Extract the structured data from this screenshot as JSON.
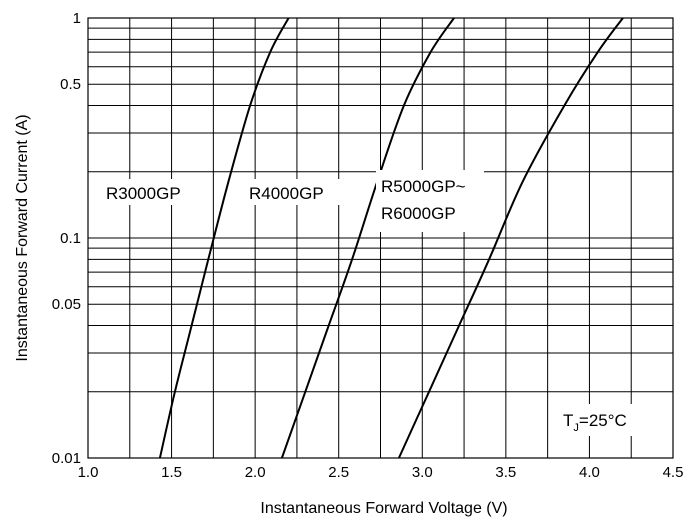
{
  "chart_data": {
    "type": "line",
    "title": "",
    "xlabel": "Instantaneous Forward Voltage (V)",
    "ylabel": "Instantaneous Forward Current (A)",
    "x_scale": "linear",
    "y_scale": "log",
    "xlim": [
      1.0,
      4.5
    ],
    "ylim": [
      0.01,
      1
    ],
    "x_ticks": [
      "1.0",
      "1.5",
      "2.0",
      "2.5",
      "3.0",
      "3.5",
      "4.0",
      "4.5"
    ],
    "y_ticks": [
      {
        "value": 0.01,
        "label": "0.01"
      },
      {
        "value": 0.05,
        "label": "0.05"
      },
      {
        "value": 0.1,
        "label": "0.1"
      },
      {
        "value": 0.5,
        "label": "0.5"
      },
      {
        "value": 1,
        "label": "1"
      }
    ],
    "grid": true,
    "line_color": "#000000",
    "series": [
      {
        "name": "R3000GP",
        "x": [
          1.43,
          1.52,
          1.62,
          1.72,
          1.84,
          1.97,
          2.09,
          2.2
        ],
        "y": [
          0.01,
          0.02,
          0.04,
          0.08,
          0.18,
          0.4,
          0.7,
          1.0
        ]
      },
      {
        "name": "R4000GP",
        "x": [
          2.16,
          2.3,
          2.44,
          2.58,
          2.73,
          2.89,
          3.05,
          3.19
        ],
        "y": [
          0.01,
          0.02,
          0.04,
          0.08,
          0.18,
          0.4,
          0.7,
          1.0
        ]
      },
      {
        "name": "R5000GP~ R6000GP",
        "x": [
          2.86,
          3.04,
          3.22,
          3.4,
          3.6,
          3.85,
          4.05,
          4.2
        ],
        "y": [
          0.01,
          0.02,
          0.04,
          0.08,
          0.18,
          0.4,
          0.7,
          1.0
        ]
      }
    ],
    "series_labels": [
      {
        "text": "R3000GP"
      },
      {
        "text": "R4000GP"
      },
      {
        "line1": "R5000GP~",
        "line2": "R6000GP"
      }
    ],
    "annotation": {
      "prefix": "T",
      "sub": "J",
      "suffix": "=25°C"
    }
  }
}
